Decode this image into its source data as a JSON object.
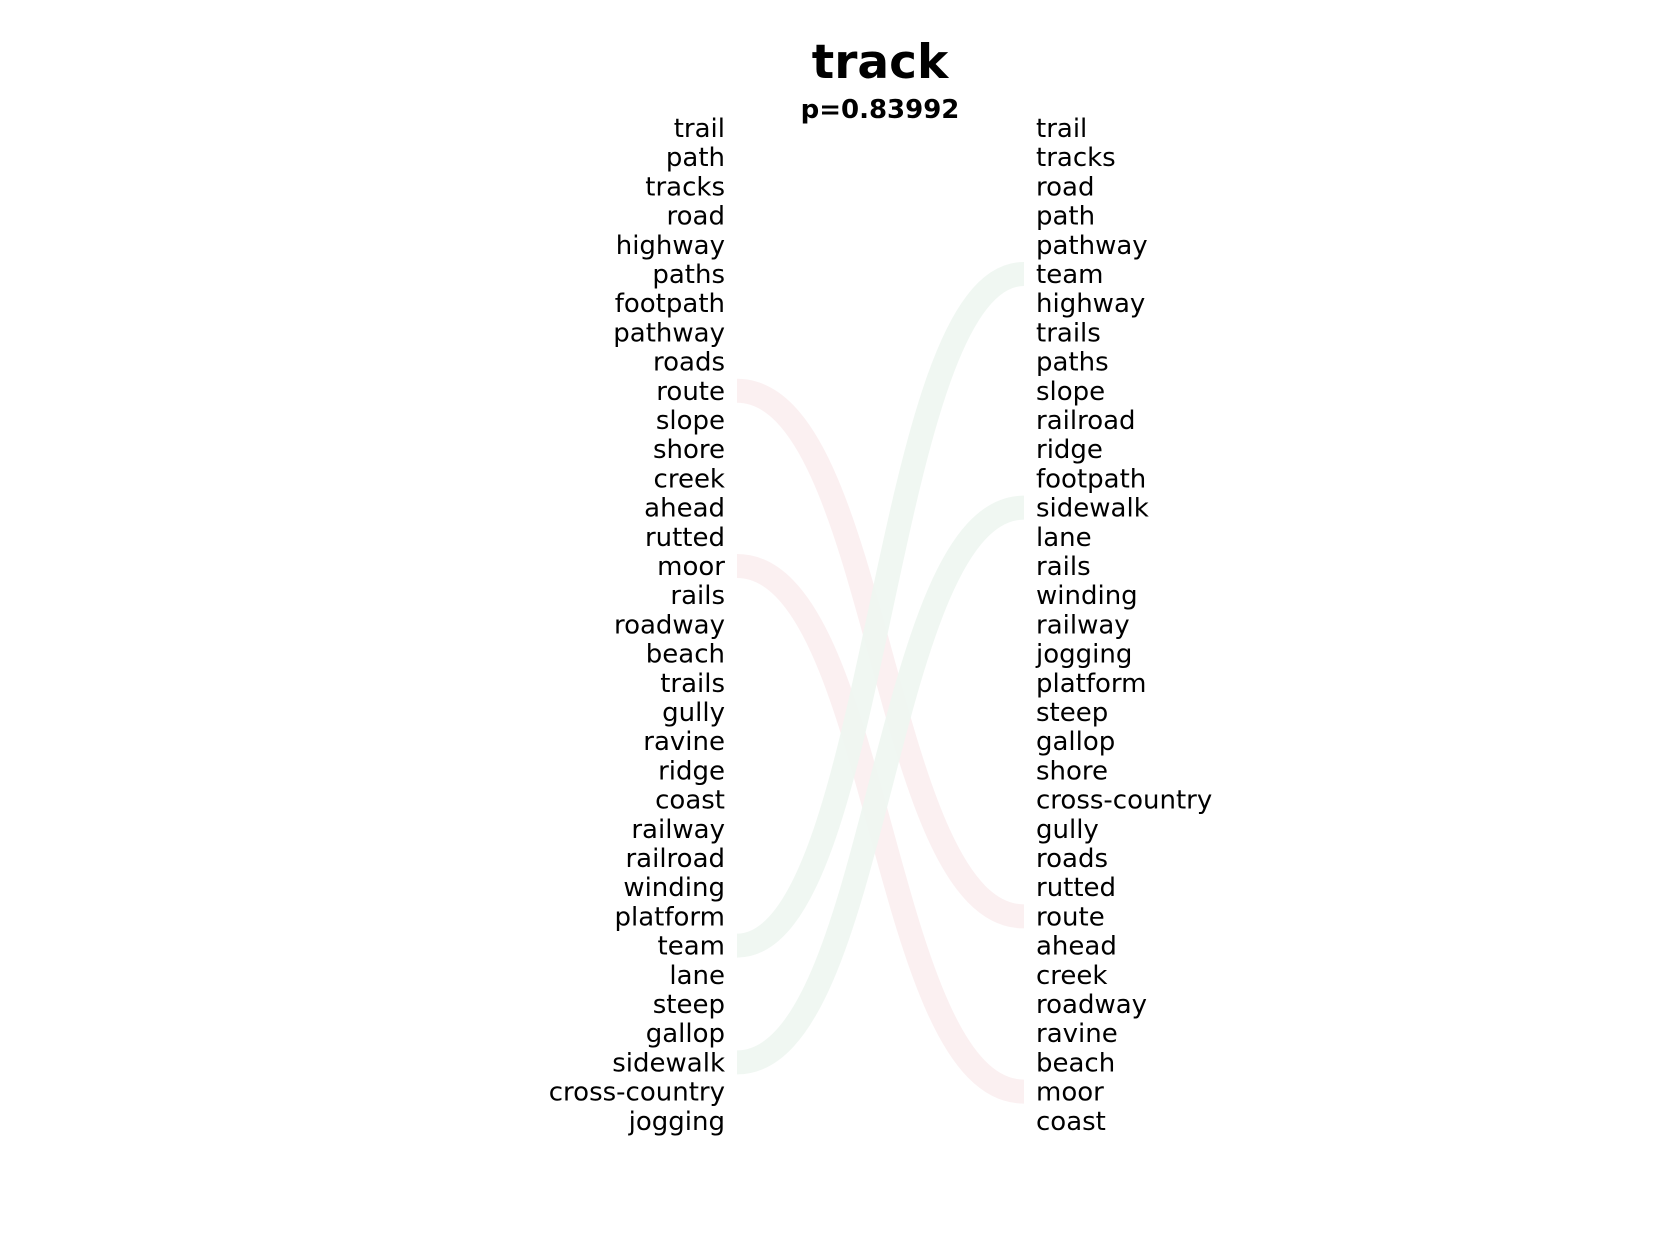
{
  "chart_data": {
    "type": "slopegraph",
    "title": "track",
    "subtitle": "p=0.83992",
    "left_list": [
      "trail",
      "path",
      "tracks",
      "road",
      "highway",
      "paths",
      "footpath",
      "pathway",
      "roads",
      "route",
      "slope",
      "shore",
      "creek",
      "ahead",
      "rutted",
      "moor",
      "rails",
      "roadway",
      "beach",
      "trails",
      "gully",
      "ravine",
      "ridge",
      "coast",
      "railway",
      "railroad",
      "winding",
      "platform",
      "team",
      "lane",
      "steep",
      "gallop",
      "sidewalk",
      "cross-country",
      "jogging"
    ],
    "right_list": [
      "trail",
      "tracks",
      "road",
      "path",
      "pathway",
      "team",
      "highway",
      "trails",
      "paths",
      "slope",
      "railroad",
      "ridge",
      "footpath",
      "sidewalk",
      "lane",
      "rails",
      "winding",
      "railway",
      "jogging",
      "platform",
      "steep",
      "gallop",
      "shore",
      "cross-country",
      "gully",
      "roads",
      "rutted",
      "route",
      "ahead",
      "creek",
      "roadway",
      "ravine",
      "beach",
      "moor",
      "coast"
    ],
    "links": [
      {
        "word": "route",
        "left_rank": 10,
        "right_rank": 28,
        "color": "#fbeef0"
      },
      {
        "word": "moor",
        "left_rank": 16,
        "right_rank": 34,
        "color": "#fbeef0"
      },
      {
        "word": "team",
        "left_rank": 29,
        "right_rank": 6,
        "color": "#eef6f1"
      },
      {
        "word": "sidewalk",
        "left_rank": 33,
        "right_rank": 14,
        "color": "#eef6f1"
      }
    ]
  }
}
